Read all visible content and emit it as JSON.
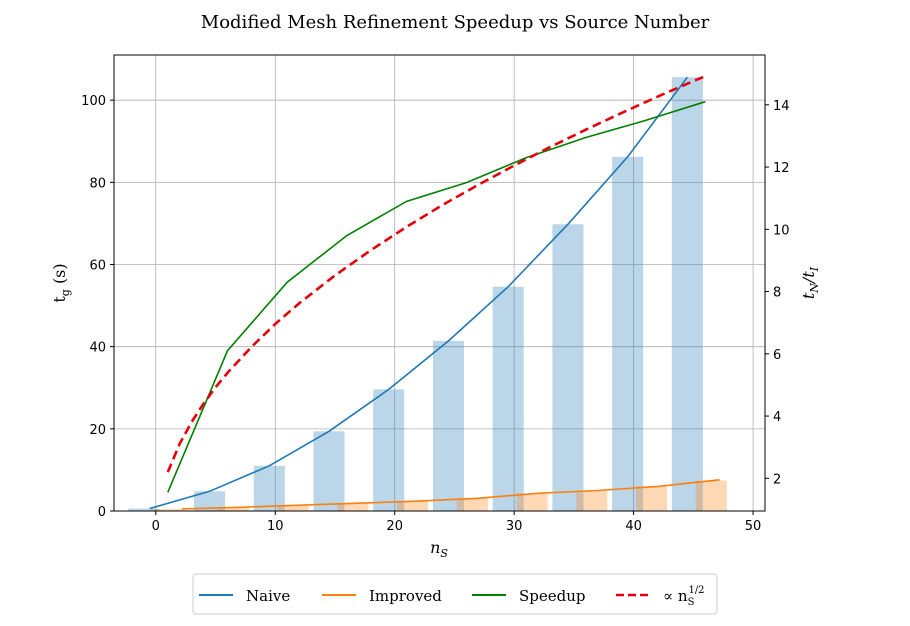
{
  "chart_data": {
    "type": "bar",
    "title": "Modified Mesh Refinement Speedup vs Source Number",
    "xlabel": "n_S",
    "ylabel_left": "t_g (s)",
    "ylabel_right": "t_N/t_I",
    "xlim": [
      -3.5,
      51
    ],
    "ylim_left": [
      0,
      111
    ],
    "ylim_right": [
      0.95,
      15.6
    ],
    "grid": true,
    "legend_position": "bottom-center",
    "xticks": [
      0,
      10,
      20,
      30,
      40,
      50
    ],
    "yticks_left": [
      0,
      20,
      40,
      60,
      80,
      100
    ],
    "yticks_right": [
      2,
      4,
      6,
      8,
      10,
      12,
      14
    ],
    "bars": [
      {
        "name": "Naive",
        "color": "#1f77b4",
        "alpha": 0.3,
        "x": [
          -1,
          4.5,
          9.5,
          14.5,
          19.5,
          24.5,
          29.5,
          34.5,
          39.5,
          44.5
        ],
        "values": [
          0.6,
          4.8,
          11.0,
          19.4,
          29.6,
          41.4,
          54.6,
          69.8,
          86.2,
          105.6
        ]
      },
      {
        "name": "Improved",
        "color": "#ff7f0e",
        "alpha": 0.3,
        "x": [
          1,
          6.5,
          11.5,
          16.5,
          21.5,
          26.5,
          31.5,
          36.5,
          41.5,
          46.5
        ],
        "values": [
          0.5,
          0.9,
          1.4,
          1.9,
          2.4,
          3.1,
          4.3,
          5.0,
          6.0,
          7.4
        ]
      }
    ],
    "series": [
      {
        "name": "Naive",
        "axis": "left",
        "color": "#1f77b4",
        "style": "solid",
        "x": [
          -0.5,
          4.5,
          9.5,
          14.5,
          19.5,
          24.5,
          29.5,
          34.5,
          39.5,
          44.5
        ],
        "y": [
          0.6,
          4.8,
          11.0,
          19.4,
          29.6,
          41.4,
          54.6,
          69.8,
          86.2,
          105.6
        ]
      },
      {
        "name": "Improved",
        "axis": "left",
        "color": "#ff7f0e",
        "style": "solid",
        "x": [
          2.2,
          7,
          12,
          17,
          22,
          27,
          32,
          37,
          42,
          47.2
        ],
        "y": [
          0.5,
          0.9,
          1.4,
          1.9,
          2.4,
          3.1,
          4.3,
          5.0,
          6.0,
          7.6
        ]
      },
      {
        "name": "Speedup",
        "axis": "right",
        "color": "#008000",
        "style": "solid",
        "x": [
          1,
          6,
          11,
          16,
          21,
          26,
          31,
          36,
          41,
          46
        ],
        "y": [
          1.55,
          6.1,
          8.3,
          9.8,
          10.9,
          11.5,
          12.3,
          12.95,
          13.5,
          14.1
        ]
      },
      {
        "name": "∝ n_S^{1/2}",
        "axis": "right",
        "color": "#e6000b",
        "style": "dashed",
        "x": [
          1,
          2,
          3,
          4,
          5,
          6,
          8,
          10,
          12,
          15,
          18,
          21,
          24,
          27,
          30,
          33,
          36,
          39,
          42,
          45,
          46
        ],
        "y": [
          2.2,
          3.11,
          3.81,
          4.4,
          4.92,
          5.39,
          6.22,
          6.96,
          7.62,
          8.52,
          9.33,
          10.08,
          10.78,
          11.43,
          12.05,
          12.64,
          13.2,
          13.74,
          14.26,
          14.76,
          14.92
        ]
      }
    ]
  },
  "legend": {
    "items": [
      {
        "label": "Naive",
        "color": "#1f77b4",
        "dash": ""
      },
      {
        "label": "Improved",
        "color": "#ff7f0e",
        "dash": ""
      },
      {
        "label": "Speedup",
        "color": "#008000",
        "dash": ""
      },
      {
        "label": "∝ n",
        "sub": "S",
        "sup": "1/2",
        "color": "#e6000b",
        "dash": "8,4"
      }
    ]
  }
}
